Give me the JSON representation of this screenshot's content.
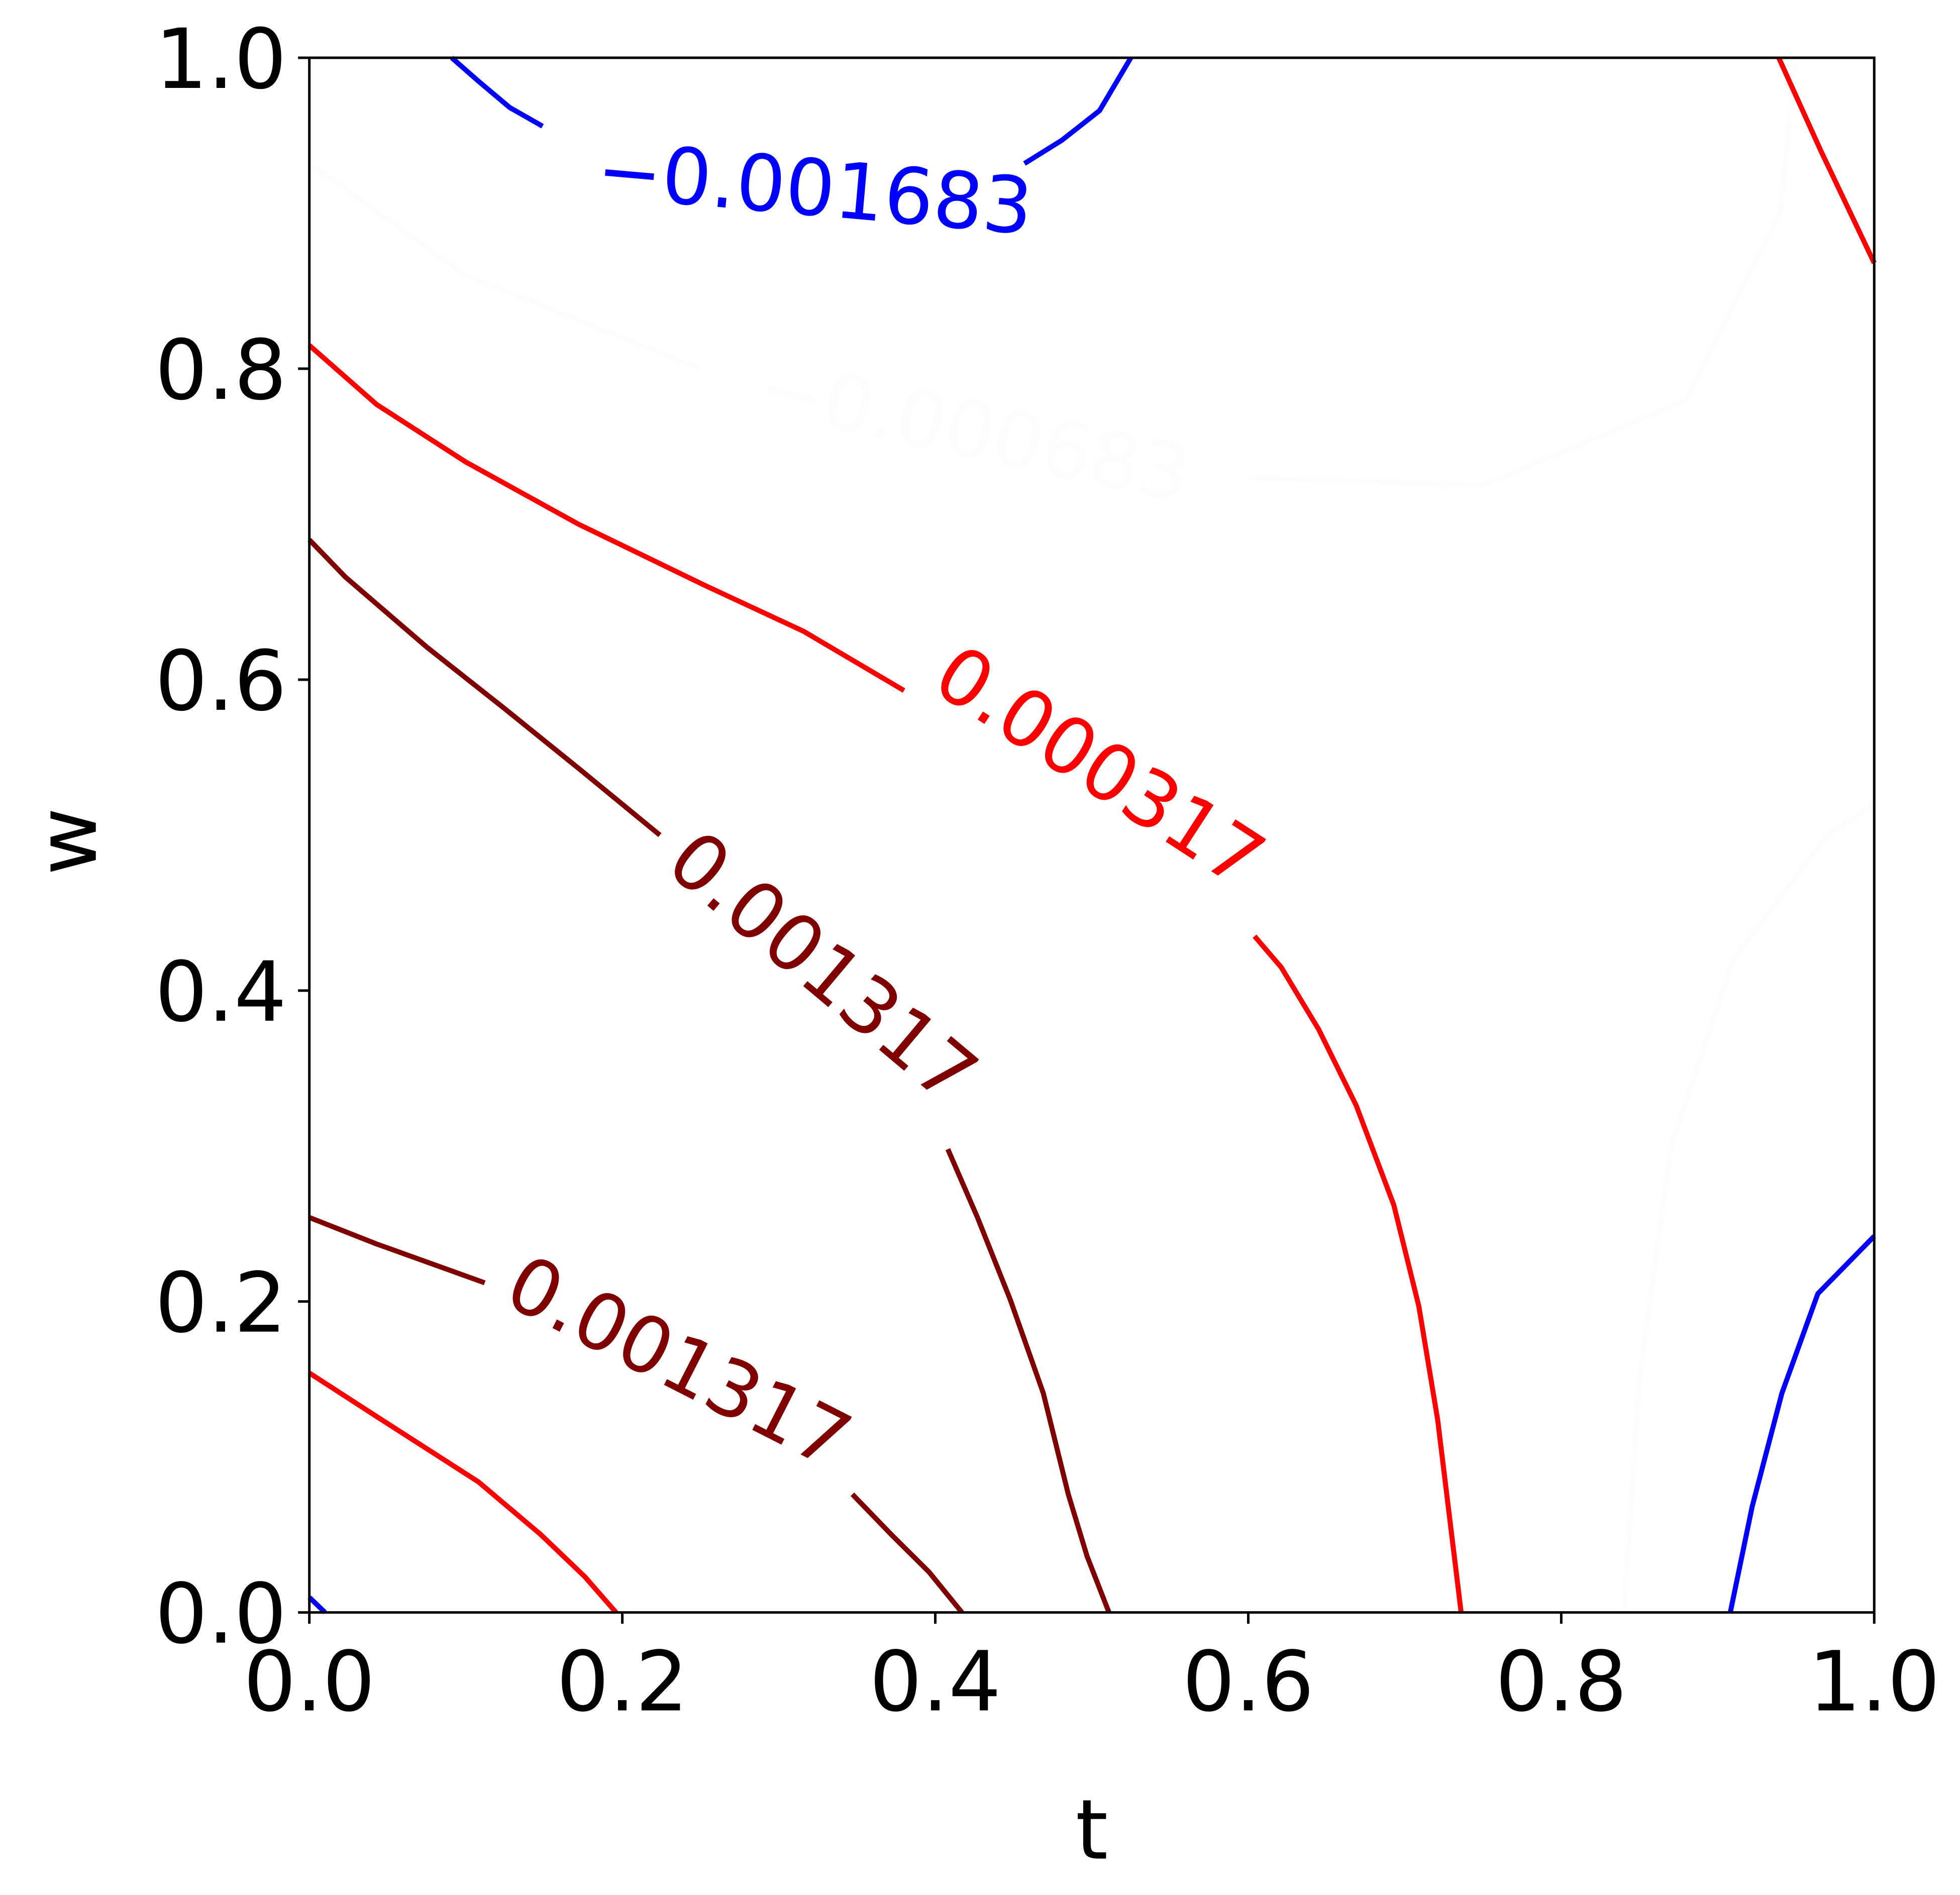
{
  "chart_data": {
    "type": "contour",
    "title": "",
    "xlabel": "t",
    "ylabel": "w",
    "xlim": [
      0,
      1
    ],
    "ylim": [
      0,
      1
    ],
    "xticks": [
      "0.0",
      "0.2",
      "0.4",
      "0.6",
      "0.8",
      "1.0"
    ],
    "yticks": [
      "0.0",
      "0.2",
      "0.4",
      "0.6",
      "0.8",
      "1.0"
    ],
    "grid": false,
    "contours": [
      {
        "level": "-0.001683",
        "color": "#0000ff",
        "segments": [
          [
            [
              0.091,
              1.0
            ],
            [
              0.108,
              0.985
            ],
            [
              0.128,
              0.968
            ],
            [
              0.149,
              0.956
            ]
          ],
          [
            [
              0.457,
              0.932
            ],
            [
              0.481,
              0.947
            ],
            [
              0.505,
              0.966
            ],
            [
              0.525,
              1.0
            ]
          ],
          [
            [
              0.0,
              0.0097
            ],
            [
              0.01,
              0.0
            ]
          ],
          [
            [
              0.908,
              0.0
            ],
            [
              0.922,
              0.068
            ],
            [
              0.941,
              0.141
            ],
            [
              0.964,
              0.205
            ],
            [
              1.0,
              0.242
            ]
          ]
        ],
        "label": {
          "text": "-0.001683",
          "t": 0.323,
          "w": 0.916,
          "angle": 5
        }
      },
      {
        "level": "-0.000683",
        "color": "#fdfbfc",
        "segments": [
          [
            [
              0.003,
              0.93
            ],
            [
              0.1,
              0.86
            ],
            [
              0.25,
              0.8
            ]
          ],
          [
            [
              0.6,
              0.73
            ],
            [
              0.75,
              0.725
            ],
            [
              0.88,
              0.78
            ],
            [
              0.94,
              0.9
            ],
            [
              0.95,
              1.0
            ]
          ],
          [
            [
              0.84,
              0.0
            ],
            [
              0.85,
              0.15
            ],
            [
              0.87,
              0.3
            ],
            [
              0.91,
              0.42
            ],
            [
              0.97,
              0.5
            ],
            [
              1.0,
              0.52
            ]
          ]
        ],
        "label": {
          "text": "-0.000683",
          "t": 0.425,
          "w": 0.76,
          "angle": 12
        }
      },
      {
        "level": "0.000317",
        "color": "#ff0000",
        "segments": [
          [
            [
              0.0,
              0.815
            ],
            [
              0.043,
              0.777
            ],
            [
              0.1,
              0.74
            ],
            [
              0.172,
              0.7
            ],
            [
              0.252,
              0.661
            ],
            [
              0.316,
              0.631
            ],
            [
              0.38,
              0.593
            ]
          ],
          [
            [
              0.604,
              0.435
            ],
            [
              0.621,
              0.415
            ],
            [
              0.645,
              0.375
            ],
            [
              0.669,
              0.326
            ],
            [
              0.693,
              0.262
            ],
            [
              0.709,
              0.197
            ],
            [
              0.721,
              0.124
            ],
            [
              0.736,
              0.0
            ]
          ],
          [
            [
              0.0,
              0.154
            ],
            [
              0.043,
              0.126
            ],
            [
              0.108,
              0.084
            ],
            [
              0.148,
              0.05
            ],
            [
              0.176,
              0.023
            ],
            [
              0.196,
              0.0
            ]
          ],
          [
            [
              0.939,
              1.0
            ],
            [
              0.966,
              0.94
            ],
            [
              1.0,
              0.868
            ]
          ]
        ],
        "label": {
          "text": "0.000317",
          "t": 0.505,
          "w": 0.544,
          "angle": 33
        }
      },
      {
        "level": "0.001317",
        "color": "#800000",
        "segments": [
          [
            [
              0.0,
              0.69
            ],
            [
              0.023,
              0.666
            ],
            [
              0.075,
              0.621
            ],
            [
              0.124,
              0.582
            ],
            [
              0.172,
              0.543
            ],
            [
              0.224,
              0.5
            ]
          ],
          [
            [
              0.408,
              0.298
            ],
            [
              0.427,
              0.254
            ],
            [
              0.448,
              0.201
            ],
            [
              0.469,
              0.141
            ],
            [
              0.485,
              0.076
            ],
            [
              0.497,
              0.036
            ],
            [
              0.511,
              0.0
            ]
          ]
        ],
        "label": {
          "text": "0.001317",
          "t": 0.328,
          "w": 0.415,
          "angle": 40
        }
      },
      {
        "level": "0.001317",
        "color": "#800000",
        "segments": [
          [
            [
              0.0,
              0.254
            ],
            [
              0.043,
              0.237
            ],
            [
              0.112,
              0.212
            ]
          ],
          [
            [
              0.347,
              0.076
            ],
            [
              0.372,
              0.05
            ],
            [
              0.396,
              0.026
            ],
            [
              0.417,
              0.0
            ]
          ]
        ],
        "label": {
          "text": "0.001317",
          "t": 0.236,
          "w": 0.161,
          "angle": 27
        }
      }
    ]
  }
}
